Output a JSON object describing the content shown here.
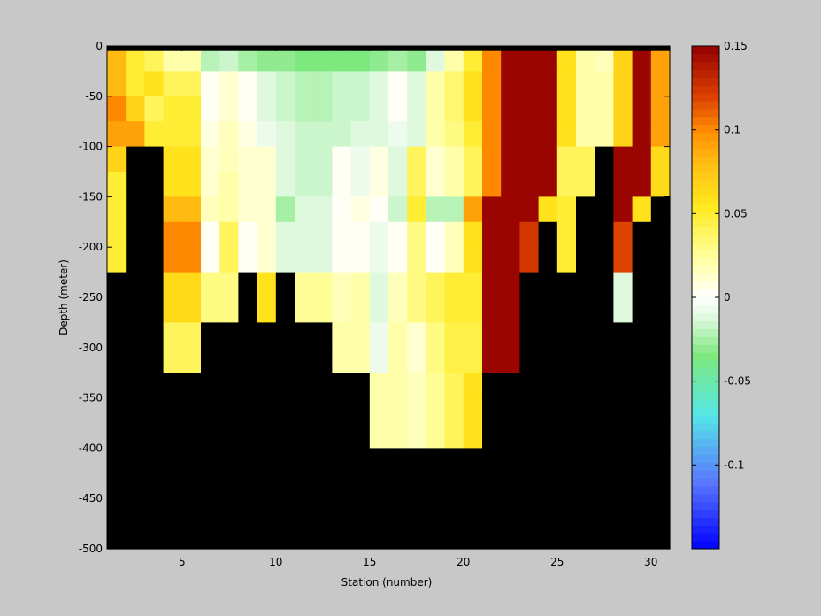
{
  "chart_data": {
    "type": "heatmap",
    "xlabel": "Station (number)",
    "ylabel": "Depth (meter)",
    "x_range": [
      1,
      31
    ],
    "y_range": [
      -500,
      0
    ],
    "x_ticks": [
      5,
      10,
      15,
      20,
      25,
      30
    ],
    "y_ticks": [
      0,
      -50,
      -100,
      -150,
      -200,
      -250,
      -300,
      -350,
      -400,
      -450,
      -500
    ],
    "depth_bins_top": [
      0,
      -5,
      -25,
      -50,
      -75,
      -100,
      -125,
      -150,
      -175,
      -200,
      -225,
      -250,
      -275,
      -300,
      -325,
      -350,
      -375,
      -400
    ],
    "depth_bins_bottom": [
      -5,
      -25,
      -50,
      -75,
      -100,
      -125,
      -150,
      -175,
      -200,
      -225,
      -250,
      -275,
      -300,
      -325,
      -350,
      -375,
      -400,
      -500
    ],
    "stations": [
      1,
      2,
      3,
      4,
      5,
      6,
      7,
      8,
      9,
      10,
      11,
      12,
      13,
      14,
      15,
      16,
      17,
      18,
      19,
      20,
      21,
      22,
      23,
      24,
      25,
      26,
      27,
      28,
      29,
      30
    ],
    "values": [
      [
        null,
        null,
        null,
        null,
        null,
        null,
        null,
        null,
        null,
        null,
        null,
        null,
        null,
        null,
        null,
        null,
        null,
        null,
        null,
        null,
        null,
        null,
        null,
        null,
        null,
        null,
        null,
        null,
        null,
        null
      ],
      [
        0.08,
        0.05,
        0.04,
        0.02,
        0.02,
        -0.02,
        -0.015,
        -0.025,
        -0.03,
        -0.03,
        -0.035,
        -0.035,
        -0.035,
        -0.035,
        -0.03,
        -0.025,
        -0.03,
        -0.01,
        0.02,
        0.05,
        0.1,
        0.15,
        0.15,
        0.15,
        0.06,
        0.02,
        0.015,
        0.07,
        0.15,
        0.09
      ],
      [
        0.08,
        0.05,
        0.06,
        0.04,
        0.04,
        0.0,
        0.01,
        0.0,
        -0.01,
        -0.015,
        -0.02,
        -0.02,
        -0.015,
        -0.015,
        -0.01,
        0.0,
        -0.01,
        0.02,
        0.035,
        0.06,
        0.1,
        0.15,
        0.15,
        0.15,
        0.06,
        0.02,
        0.02,
        0.07,
        0.15,
        0.09
      ],
      [
        0.1,
        0.07,
        0.04,
        0.05,
        0.05,
        0.0,
        0.01,
        0.0,
        -0.01,
        -0.015,
        -0.02,
        -0.02,
        -0.015,
        -0.015,
        -0.01,
        0.0,
        -0.01,
        0.02,
        0.035,
        0.06,
        0.1,
        0.15,
        0.15,
        0.15,
        0.06,
        0.02,
        0.02,
        0.07,
        0.15,
        0.09
      ],
      [
        0.09,
        0.09,
        0.05,
        0.05,
        0.05,
        0.005,
        0.015,
        0.005,
        -0.005,
        -0.01,
        -0.015,
        -0.015,
        -0.015,
        -0.01,
        -0.01,
        -0.005,
        -0.01,
        0.02,
        0.03,
        0.05,
        0.1,
        0.15,
        0.15,
        0.15,
        0.06,
        0.02,
        0.02,
        0.07,
        0.15,
        0.09
      ],
      [
        0.07,
        null,
        null,
        0.06,
        0.06,
        0.01,
        0.015,
        0.01,
        0.01,
        -0.01,
        -0.015,
        -0.015,
        0.0,
        -0.005,
        0.005,
        -0.01,
        0.04,
        0.01,
        0.02,
        0.04,
        0.1,
        0.15,
        0.15,
        0.15,
        0.04,
        0.04,
        null,
        0.15,
        0.15,
        0.065
      ],
      [
        0.05,
        null,
        null,
        0.06,
        0.06,
        0.01,
        0.02,
        0.01,
        0.01,
        -0.01,
        -0.015,
        -0.015,
        0.0,
        -0.005,
        0.005,
        -0.01,
        0.04,
        0.01,
        0.02,
        0.04,
        0.1,
        0.15,
        0.15,
        0.15,
        0.04,
        0.04,
        null,
        0.15,
        0.15,
        0.065
      ],
      [
        0.05,
        null,
        null,
        0.08,
        0.08,
        0.015,
        0.02,
        0.01,
        0.01,
        -0.025,
        -0.01,
        -0.01,
        0.0,
        0.005,
        0.0,
        -0.015,
        0.05,
        -0.02,
        -0.02,
        0.09,
        0.15,
        0.15,
        0.15,
        0.06,
        0.05,
        null,
        null,
        0.15,
        0.06,
        null
      ],
      [
        0.05,
        null,
        null,
        0.1,
        0.1,
        0.0,
        0.04,
        0.0,
        0.01,
        -0.01,
        -0.01,
        -0.01,
        0.0,
        0.0,
        -0.005,
        0.0,
        0.03,
        0.0,
        0.015,
        0.06,
        0.15,
        0.15,
        0.125,
        null,
        0.05,
        null,
        null,
        0.12,
        null,
        null
      ],
      [
        0.05,
        null,
        null,
        0.1,
        0.1,
        0.0,
        0.04,
        0.0,
        0.01,
        -0.01,
        -0.01,
        -0.01,
        0.0,
        0.0,
        -0.005,
        0.0,
        0.03,
        0.0,
        0.015,
        0.06,
        0.15,
        0.15,
        0.125,
        null,
        0.05,
        null,
        null,
        0.12,
        null,
        null
      ],
      [
        null,
        null,
        null,
        0.065,
        0.065,
        0.03,
        0.03,
        null,
        0.06,
        null,
        0.025,
        0.025,
        0.015,
        0.02,
        -0.01,
        0.015,
        0.03,
        0.04,
        0.05,
        0.05,
        0.15,
        0.15,
        null,
        null,
        null,
        null,
        null,
        -0.01,
        null,
        null
      ],
      [
        null,
        null,
        null,
        0.065,
        0.065,
        0.03,
        0.03,
        null,
        0.06,
        null,
        0.025,
        0.025,
        0.015,
        0.02,
        -0.01,
        0.015,
        0.03,
        0.04,
        0.05,
        0.05,
        0.15,
        0.15,
        null,
        null,
        null,
        null,
        null,
        -0.01,
        null,
        null
      ],
      [
        null,
        null,
        null,
        0.04,
        0.04,
        null,
        null,
        null,
        null,
        null,
        null,
        null,
        0.02,
        0.02,
        -0.005,
        0.02,
        0.01,
        0.03,
        0.045,
        0.045,
        0.15,
        0.15,
        null,
        null,
        null,
        null,
        null,
        null,
        null,
        null
      ],
      [
        null,
        null,
        null,
        0.04,
        0.04,
        null,
        null,
        null,
        null,
        null,
        null,
        null,
        0.02,
        0.02,
        -0.005,
        0.02,
        0.01,
        0.03,
        0.045,
        0.045,
        0.15,
        0.15,
        null,
        null,
        null,
        null,
        null,
        null,
        null,
        null
      ],
      [
        null,
        null,
        null,
        null,
        null,
        null,
        null,
        null,
        null,
        null,
        null,
        null,
        null,
        null,
        0.02,
        0.02,
        0.015,
        0.025,
        0.04,
        0.06,
        null,
        null,
        null,
        null,
        null,
        null,
        null,
        null,
        null,
        null
      ],
      [
        null,
        null,
        null,
        null,
        null,
        null,
        null,
        null,
        null,
        null,
        null,
        null,
        null,
        null,
        0.02,
        0.02,
        0.015,
        0.025,
        0.04,
        0.06,
        null,
        null,
        null,
        null,
        null,
        null,
        null,
        null,
        null,
        null
      ],
      [
        null,
        null,
        null,
        null,
        null,
        null,
        null,
        null,
        null,
        null,
        null,
        null,
        null,
        null,
        0.02,
        0.02,
        0.015,
        0.025,
        0.04,
        0.06,
        null,
        null,
        null,
        null,
        null,
        null,
        null,
        null,
        null,
        null
      ],
      [
        null,
        null,
        null,
        null,
        null,
        null,
        null,
        null,
        null,
        null,
        null,
        null,
        null,
        null,
        null,
        null,
        null,
        null,
        null,
        null,
        null,
        null,
        null,
        null,
        null,
        null,
        null,
        null,
        null,
        null
      ]
    ],
    "missing_color": "#000000",
    "colorbar": {
      "range": [
        -0.15,
        0.15
      ],
      "ticks": [
        0.15,
        0.1,
        0.05,
        0,
        -0.05,
        -0.1
      ],
      "tick_labels": [
        "0.15",
        "0.1",
        "0.05",
        "0",
        "-0.05",
        "-0.1"
      ],
      "levels": 64,
      "stops": [
        {
          "v": -0.15,
          "c": "#0000ff"
        },
        {
          "v": -0.11,
          "c": "#5a78ff"
        },
        {
          "v": -0.07,
          "c": "#55e6e6"
        },
        {
          "v": -0.035,
          "c": "#7de87d"
        },
        {
          "v": -0.01,
          "c": "#e6fae6"
        },
        {
          "v": 0.0,
          "c": "#ffffff"
        },
        {
          "v": 0.025,
          "c": "#ffff99"
        },
        {
          "v": 0.055,
          "c": "#ffe81c"
        },
        {
          "v": 0.08,
          "c": "#ffbf14"
        },
        {
          "v": 0.1,
          "c": "#ff8c00"
        },
        {
          "v": 0.12,
          "c": "#dc4000"
        },
        {
          "v": 0.15,
          "c": "#960000"
        }
      ]
    }
  }
}
